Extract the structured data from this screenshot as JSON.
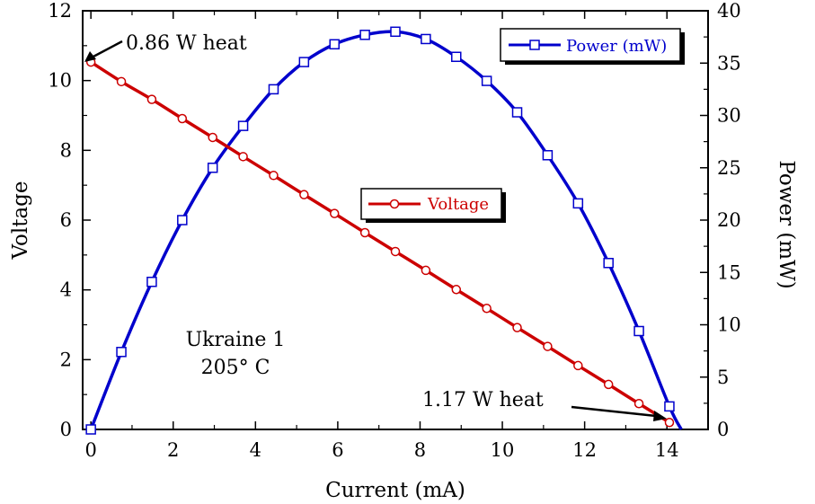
{
  "chart_data": {
    "type": "line",
    "xlabel": "Current (mA)",
    "ylabel": "Voltage",
    "y2label": "Power (mW)",
    "xlim": [
      -0.2,
      15
    ],
    "ylim": [
      0,
      12
    ],
    "y2lim": [
      0,
      40
    ],
    "xticks": [
      0,
      2,
      4,
      6,
      8,
      10,
      12,
      14
    ],
    "yticks": [
      0,
      2,
      4,
      6,
      8,
      10,
      12
    ],
    "y2ticks": [
      0,
      5,
      10,
      15,
      20,
      25,
      30,
      35,
      40
    ],
    "grid": false,
    "series": [
      {
        "name": "Power (mW)",
        "axis": "right",
        "color": "#0000cc",
        "marker": "square",
        "x": [
          0,
          0.74,
          1.48,
          2.22,
          2.96,
          3.7,
          4.44,
          5.18,
          5.92,
          6.66,
          7.4,
          8.14,
          8.88,
          9.62,
          10.36,
          11.1,
          11.84,
          12.58,
          13.32,
          14.06
        ],
        "values": [
          0,
          7.4,
          14.1,
          20,
          25,
          29,
          32.5,
          35.1,
          36.8,
          37.7,
          38.0,
          37.3,
          35.6,
          33.3,
          30.3,
          26.2,
          21.6,
          15.9,
          9.4,
          2.2
        ]
      },
      {
        "name": "Voltage",
        "axis": "left",
        "color": "#cc0000",
        "marker": "circle",
        "x": [
          0,
          0.74,
          1.48,
          2.22,
          2.96,
          3.7,
          4.44,
          5.18,
          5.92,
          6.66,
          7.4,
          8.14,
          8.88,
          9.62,
          10.36,
          11.1,
          11.84,
          12.58,
          13.32,
          14.06
        ],
        "values": [
          10.53,
          9.97,
          9.46,
          8.91,
          8.37,
          7.82,
          7.28,
          6.73,
          6.19,
          5.64,
          5.1,
          4.56,
          4.01,
          3.47,
          2.92,
          2.38,
          1.83,
          1.29,
          0.74,
          0.2
        ]
      }
    ],
    "annotations": {
      "top_left": "0.86 W heat",
      "bottom_right": "1.17 W heat",
      "sample_line1": "Ukraine 1",
      "sample_line2": "205° C"
    }
  }
}
